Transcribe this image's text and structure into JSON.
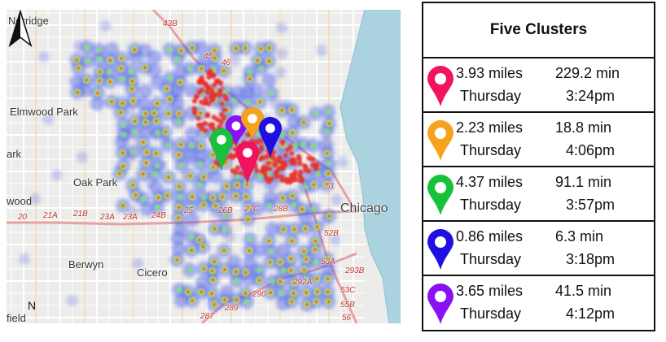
{
  "map": {
    "places": [
      "Norridge",
      "Elmwood Park",
      "Oak Park",
      "Berwyn",
      "Cicero",
      "Chicago",
      "ark",
      "wood",
      "field"
    ],
    "route_labels": [
      "43B",
      "21A",
      "21B",
      "23A",
      "23A",
      "24B",
      "25",
      "26B",
      "27C",
      "28B",
      "51",
      "52B",
      "53A",
      "53C",
      "55B",
      "56",
      "292A",
      "293B",
      "290",
      "289",
      "287",
      "20",
      "46",
      "45"
    ],
    "north_label": "N",
    "heat_colors": {
      "cool": "#4a5ee8",
      "mid": "#7ee07a",
      "warm": "#f1e23a",
      "hot": "#e8312a"
    },
    "pins": [
      {
        "name": "purple-pin",
        "color": "#8a12f2"
      },
      {
        "name": "orange-pin",
        "color": "#f7a21d"
      },
      {
        "name": "blue-pin",
        "color": "#1f0fe0"
      },
      {
        "name": "green-pin",
        "color": "#16c23a"
      },
      {
        "name": "pink-pin",
        "color": "#f2125f"
      }
    ]
  },
  "legend": {
    "title": "Five Clusters",
    "rows": [
      {
        "pin_color": "#f2125f",
        "distance": "3.93 miles",
        "day": "Thursday",
        "duration": "229.2 min",
        "time": "3:24pm"
      },
      {
        "pin_color": "#f7a21d",
        "distance": "2.23 miles",
        "day": "Thursday",
        "duration": "18.8 min",
        "time": "4:06pm"
      },
      {
        "pin_color": "#16c23a",
        "distance": "4.37 miles",
        "day": "Thursday",
        "duration": "91.1 min",
        "time": "3:57pm"
      },
      {
        "pin_color": "#1f0fe0",
        "distance": "0.86 miles",
        "day": "Thursday",
        "duration": "6.3 min",
        "time": "3:18pm"
      },
      {
        "pin_color": "#8a12f2",
        "distance": "3.65 miles",
        "day": "Thursday",
        "duration": "41.5 min",
        "time": "4:12pm"
      }
    ]
  }
}
